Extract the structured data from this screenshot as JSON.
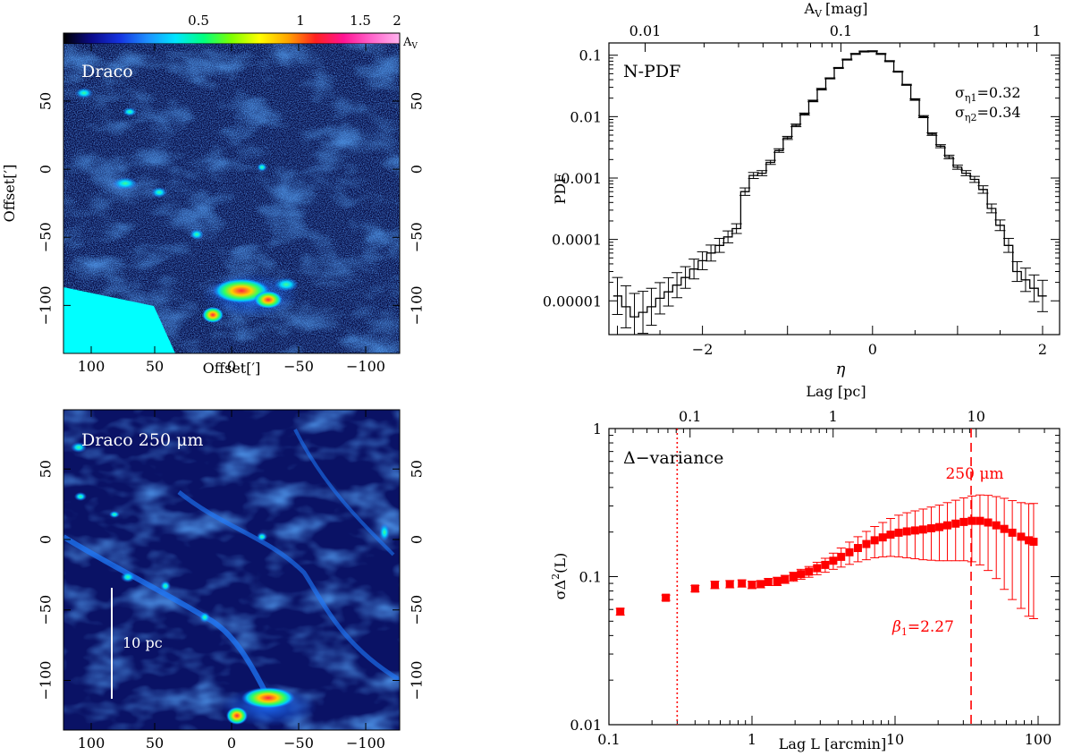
{
  "maps": {
    "top": {
      "label": "Draco",
      "colorbar_unit": "A",
      "colorbar_unit_sub": "V",
      "colorbar_ticks": [
        "0.5",
        "1",
        "1.5",
        "2"
      ],
      "colorbar_colors": [
        "#000000",
        "#0b0b8a",
        "#1533e0",
        "#1e90ff",
        "#00e5ff",
        "#00ff7f",
        "#7fff00",
        "#ffff00",
        "#ffa500",
        "#ff2020",
        "#ff1493",
        "#ff66cc",
        "#ffb3ee"
      ],
      "x_ticks": [
        "100",
        "50",
        "0",
        "−50",
        "−100"
      ],
      "y_ticks": [
        "50",
        "0",
        "−50",
        "−100"
      ],
      "xlabel": "Offset[′]",
      "ylabel": "Offset[′]"
    },
    "bottom": {
      "label": "Draco 250 μm",
      "scalebar_label": "10 pc",
      "x_ticks": [
        "100",
        "50",
        "0",
        "−50",
        "−100"
      ],
      "y_ticks": [
        "50",
        "0",
        "−50",
        "−100"
      ]
    }
  },
  "chart_data": [
    {
      "type": "step",
      "title": "N-PDF",
      "xlabel": "η",
      "ylabel": "PDF",
      "top_xlabel": "A",
      "top_xlabel_sub": "V",
      "top_xlabel_unit": "[mag]",
      "xlim": [
        -3.1,
        2.2
      ],
      "ylim_log10": [
        -5.55,
        -0.8
      ],
      "x_ticks": [
        {
          "value": -2,
          "label": "−2"
        },
        {
          "value": 0,
          "label": "0"
        },
        {
          "value": 2,
          "label": "2"
        }
      ],
      "y_ticks": [
        {
          "value": 0.1,
          "label": "0.1"
        },
        {
          "value": 0.01,
          "label": "0.01"
        },
        {
          "value": 0.001,
          "label": "0.001"
        },
        {
          "value": 0.0001,
          "label": "0.0001"
        },
        {
          "value": 1e-05,
          "label": "0.00001"
        }
      ],
      "top_ticks": [
        {
          "value": 0.01,
          "label": "0.01"
        },
        {
          "value": 0.1,
          "label": "0.1"
        },
        {
          "value": 1,
          "label": "1"
        }
      ],
      "annotations": [
        {
          "text": "σ",
          "sub": "η1",
          "rest": "=0.32"
        },
        {
          "text": "σ",
          "sub": "η2",
          "rest": "=0.34"
        }
      ],
      "bin_width": 0.1,
      "bins": {
        "x": [
          -3.0,
          -2.9,
          -2.8,
          -2.7,
          -2.6,
          -2.5,
          -2.4,
          -2.3,
          -2.2,
          -2.1,
          -2.0,
          -1.9,
          -1.8,
          -1.7,
          -1.6,
          -1.5,
          -1.4,
          -1.3,
          -1.2,
          -1.1,
          -1.0,
          -0.9,
          -0.8,
          -0.7,
          -0.6,
          -0.5,
          -0.4,
          -0.3,
          -0.2,
          -0.1,
          0.0,
          0.1,
          0.2,
          0.3,
          0.4,
          0.5,
          0.6,
          0.7,
          0.8,
          0.9,
          1.0,
          1.1,
          1.2,
          1.3,
          1.4,
          1.5,
          1.6,
          1.7,
          1.8,
          1.9,
          2.0
        ],
        "y": [
          1.2e-05,
          8e-06,
          5.5e-06,
          6.5e-06,
          8e-06,
          1.1e-05,
          1.4e-05,
          1.8e-05,
          2.4e-05,
          3.3e-05,
          4.5e-05,
          6e-05,
          8e-05,
          0.00011,
          0.00015,
          0.0006,
          0.0011,
          0.0012,
          0.0018,
          0.0028,
          0.0045,
          0.0072,
          0.011,
          0.018,
          0.028,
          0.042,
          0.062,
          0.085,
          0.105,
          0.115,
          0.116,
          0.105,
          0.08,
          0.054,
          0.033,
          0.019,
          0.01,
          0.0052,
          0.0033,
          0.0022,
          0.0015,
          0.0012,
          0.00095,
          0.00065,
          0.00032,
          0.00017,
          8e-05,
          3e-05,
          2.2e-05,
          1.6e-05,
          1.2e-05
        ],
        "err_factor": [
          2.0,
          2.2,
          2.4,
          2.2,
          2.0,
          1.8,
          1.7,
          1.6,
          1.5,
          1.45,
          1.4,
          1.35,
          1.3,
          1.25,
          1.2,
          1.15,
          1.12,
          1.1,
          1.08,
          1.07,
          1.06,
          1.05,
          1.04,
          1.03,
          1.03,
          1.02,
          1.02,
          1.02,
          1.02,
          1.02,
          1.02,
          1.02,
          1.02,
          1.02,
          1.02,
          1.03,
          1.04,
          1.05,
          1.06,
          1.07,
          1.08,
          1.1,
          1.12,
          1.15,
          1.18,
          1.22,
          1.3,
          1.45,
          1.55,
          1.65,
          1.8
        ]
      }
    },
    {
      "type": "scatter",
      "title": "Δ−variance",
      "xlabel": "Lag L [arcmin]",
      "ylabel": "σΔ",
      "ylabel_sup": "2",
      "ylabel_rest": "(L)",
      "top_xlabel": "Lag [pc]",
      "series_name": "250 μm",
      "series_color": "#ff0000",
      "beta_label": "β",
      "beta_sub": "1",
      "beta_value": "=2.27",
      "xlim_log10": [
        -1,
        2.15
      ],
      "ylim_log10": [
        -2,
        0
      ],
      "x_ticks": [
        {
          "value": 0.1,
          "label": "0.1"
        },
        {
          "value": 1,
          "label": "1"
        },
        {
          "value": 10,
          "label": "10"
        },
        {
          "value": 100,
          "label": "100"
        }
      ],
      "y_ticks": [
        {
          "value": 1,
          "label": "1"
        },
        {
          "value": 0.1,
          "label": "0.1"
        },
        {
          "value": 0.01,
          "label": "0.01"
        }
      ],
      "top_ticks": [
        {
          "value": 0.1,
          "label": "0.1"
        },
        {
          "value": 1,
          "label": "1"
        },
        {
          "value": 10,
          "label": "10"
        }
      ],
      "vline_dotted": 0.3,
      "vline_dashed": 34,
      "points": {
        "x": [
          0.12,
          0.25,
          0.4,
          0.55,
          0.7,
          0.85,
          1.0,
          1.15,
          1.3,
          1.5,
          1.7,
          1.95,
          2.2,
          2.5,
          2.85,
          3.25,
          3.7,
          4.2,
          4.8,
          5.5,
          6.3,
          7.2,
          8.2,
          9.3,
          10.6,
          12.1,
          13.8,
          15.7,
          17.9,
          20.4,
          23.2,
          26.5,
          30.2,
          34.4,
          39.2,
          44.7,
          51,
          58,
          66,
          76,
          86,
          93
        ],
        "y": [
          0.058,
          0.072,
          0.083,
          0.088,
          0.089,
          0.09,
          0.088,
          0.089,
          0.092,
          0.093,
          0.096,
          0.1,
          0.104,
          0.108,
          0.114,
          0.12,
          0.128,
          0.136,
          0.146,
          0.156,
          0.166,
          0.176,
          0.184,
          0.192,
          0.198,
          0.202,
          0.205,
          0.208,
          0.212,
          0.216,
          0.222,
          0.228,
          0.234,
          0.238,
          0.238,
          0.232,
          0.222,
          0.21,
          0.198,
          0.186,
          0.176,
          0.172
        ],
        "err_up": [
          0.003,
          0.003,
          0.004,
          0.005,
          0.005,
          0.005,
          0.005,
          0.005,
          0.005,
          0.006,
          0.006,
          0.007,
          0.008,
          0.009,
          0.011,
          0.013,
          0.016,
          0.02,
          0.025,
          0.03,
          0.036,
          0.042,
          0.048,
          0.055,
          0.062,
          0.068,
          0.073,
          0.078,
          0.083,
          0.088,
          0.094,
          0.1,
          0.106,
          0.112,
          0.118,
          0.122,
          0.125,
          0.128,
          0.128,
          0.13,
          0.135,
          0.14
        ],
        "err_down": [
          0.003,
          0.003,
          0.004,
          0.005,
          0.005,
          0.005,
          0.005,
          0.005,
          0.005,
          0.006,
          0.006,
          0.007,
          0.008,
          0.009,
          0.011,
          0.013,
          0.016,
          0.02,
          0.025,
          0.03,
          0.036,
          0.042,
          0.048,
          0.055,
          0.062,
          0.068,
          0.073,
          0.078,
          0.083,
          0.088,
          0.094,
          0.1,
          0.106,
          0.112,
          0.118,
          0.122,
          0.125,
          0.128,
          0.128,
          0.125,
          0.122,
          0.12
        ]
      }
    }
  ]
}
